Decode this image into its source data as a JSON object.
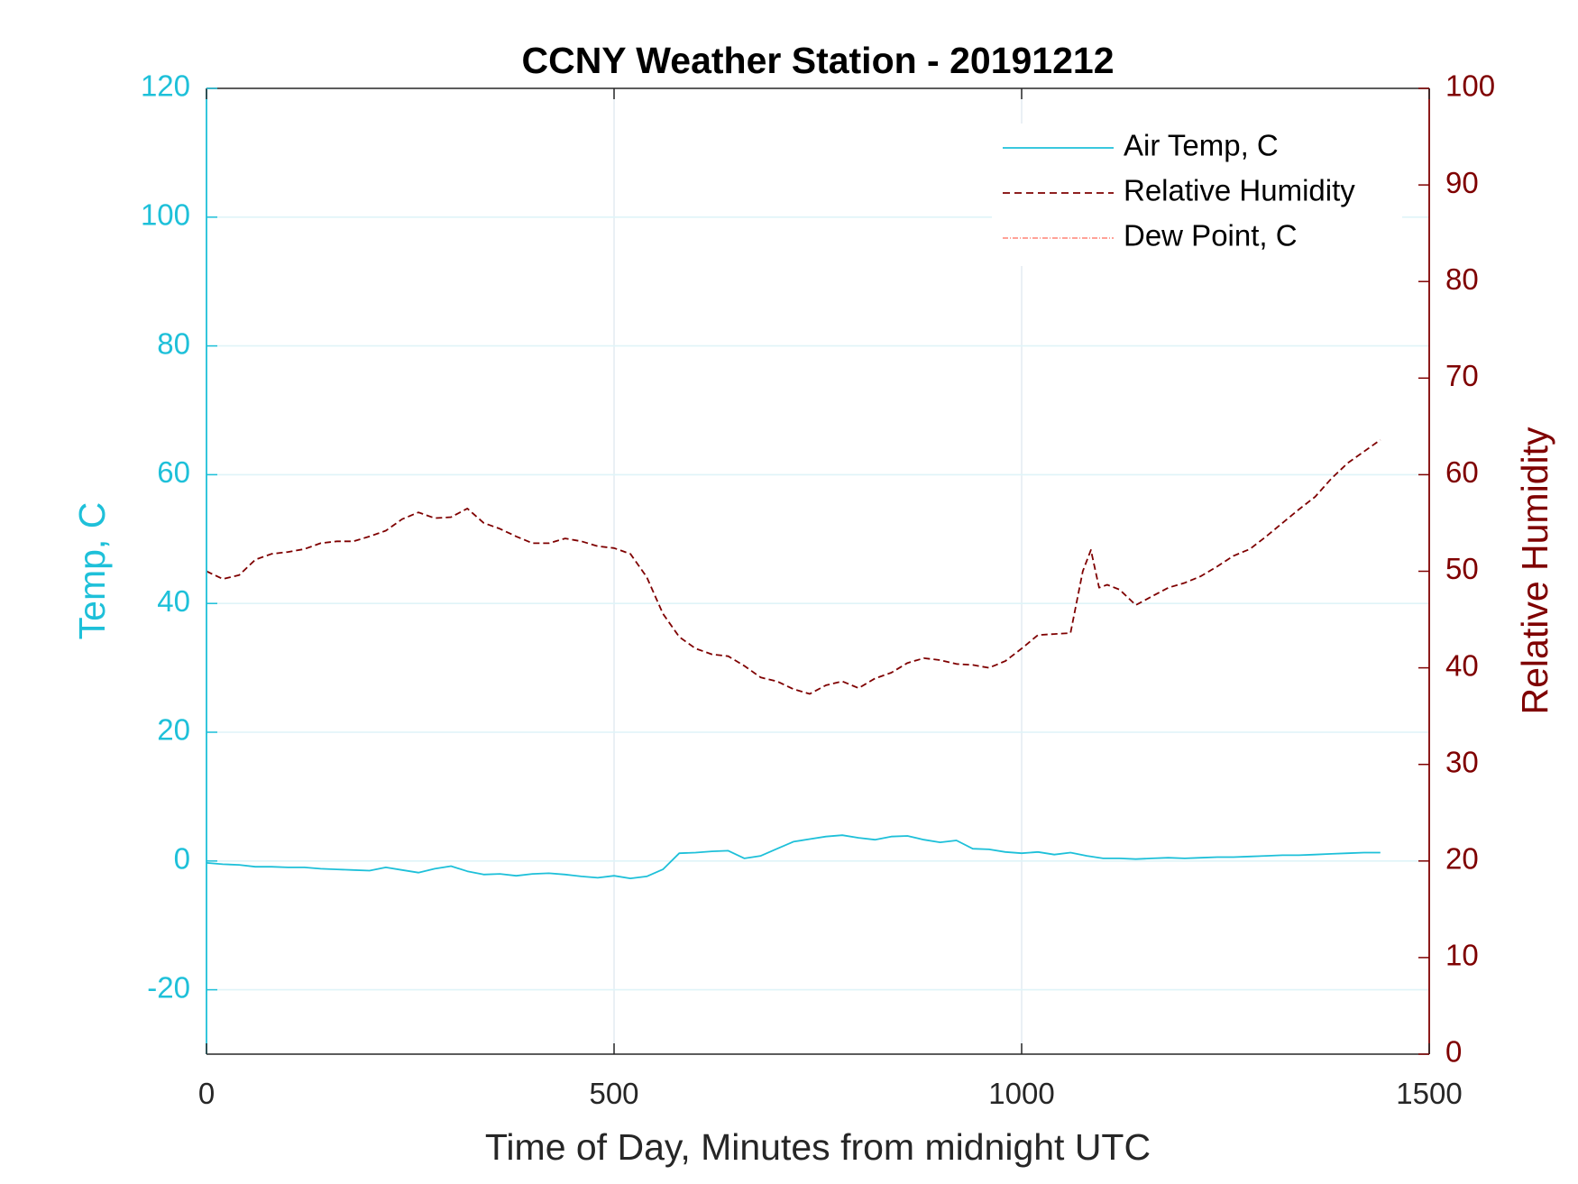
{
  "colors": {
    "temp": "#1ec0d9",
    "humidity": "#7f0000",
    "dewpoint": "#ff6a5a",
    "grid": "#dde6ee",
    "axis_x": "#262626"
  },
  "chart_data": {
    "type": "line",
    "title": "CCNY Weather Station - 20191212",
    "xlabel": "Time of Day, Minutes from midnight UTC",
    "ylabel_left": "Temp, C",
    "ylabel_right": "Relative Humidity",
    "xlim": [
      0,
      1500
    ],
    "ylim_left": [
      -30,
      120
    ],
    "ylim_right": [
      0,
      100
    ],
    "x_ticks": [
      "0",
      "500",
      "1000",
      "1500"
    ],
    "y_left_ticks": [
      "-20",
      "0",
      "20",
      "40",
      "60",
      "80",
      "100",
      "120"
    ],
    "y_right_ticks": [
      "0",
      "10",
      "20",
      "30",
      "40",
      "50",
      "60",
      "70",
      "80",
      "90",
      "100"
    ],
    "grid": true,
    "legend_position": "top-right",
    "legend": [
      "Air Temp, C",
      "Relative Humidity",
      "Dew Point, C"
    ],
    "series": [
      {
        "name": "Air Temp, C",
        "axis": "left",
        "style": "solid",
        "x": [
          0,
          20,
          40,
          60,
          80,
          100,
          120,
          140,
          160,
          180,
          200,
          220,
          240,
          260,
          280,
          300,
          320,
          340,
          360,
          380,
          400,
          420,
          440,
          460,
          480,
          500,
          520,
          540,
          560,
          580,
          600,
          620,
          640,
          660,
          680,
          700,
          720,
          740,
          760,
          780,
          800,
          820,
          840,
          860,
          880,
          900,
          920,
          940,
          960,
          980,
          1000,
          1020,
          1040,
          1060,
          1080,
          1100,
          1120,
          1140,
          1160,
          1180,
          1200,
          1220,
          1240,
          1260,
          1280,
          1300,
          1320,
          1340,
          1360,
          1380,
          1400,
          1420,
          1440
        ],
        "y": [
          -0.3,
          -0.5,
          -0.6,
          -0.9,
          -0.9,
          -1.0,
          -1.0,
          -1.2,
          -1.3,
          -1.4,
          -1.5,
          -1.0,
          -1.4,
          -1.8,
          -1.2,
          -0.8,
          -1.6,
          -2.1,
          -2.0,
          -2.3,
          -2.0,
          -1.9,
          -2.1,
          -2.4,
          -2.6,
          -2.3,
          -2.7,
          -2.4,
          -1.3,
          1.2,
          1.3,
          1.5,
          1.6,
          0.4,
          0.8,
          1.9,
          3.0,
          3.4,
          3.8,
          4.0,
          3.6,
          3.3,
          3.8,
          3.9,
          3.3,
          2.9,
          3.2,
          1.9,
          1.8,
          1.4,
          1.2,
          1.4,
          1.0,
          1.3,
          0.8,
          0.4,
          0.4,
          0.3,
          0.4,
          0.5,
          0.4,
          0.5,
          0.6,
          0.6,
          0.7,
          0.8,
          0.9,
          0.9,
          1.0,
          1.1,
          1.2,
          1.3,
          1.3
        ]
      },
      {
        "name": "Relative Humidity",
        "axis": "right",
        "style": "dashed",
        "x": [
          0,
          20,
          40,
          60,
          80,
          100,
          120,
          140,
          160,
          180,
          200,
          220,
          240,
          260,
          280,
          300,
          320,
          340,
          360,
          380,
          400,
          420,
          440,
          460,
          480,
          500,
          520,
          540,
          560,
          580,
          600,
          620,
          640,
          660,
          680,
          700,
          720,
          740,
          760,
          780,
          800,
          820,
          840,
          860,
          880,
          900,
          920,
          940,
          960,
          980,
          1000,
          1020,
          1040,
          1060,
          1075,
          1085,
          1095,
          1105,
          1120,
          1140,
          1160,
          1180,
          1200,
          1220,
          1240,
          1260,
          1280,
          1300,
          1320,
          1340,
          1360,
          1380,
          1400,
          1420,
          1440
        ],
        "y": [
          50.0,
          49.2,
          49.6,
          51.2,
          51.8,
          52.0,
          52.3,
          52.9,
          53.1,
          53.1,
          53.6,
          54.2,
          55.4,
          56.1,
          55.5,
          55.6,
          56.5,
          55.0,
          54.4,
          53.6,
          52.9,
          52.9,
          53.4,
          53.1,
          52.6,
          52.4,
          51.8,
          49.4,
          45.6,
          43.2,
          42.0,
          41.4,
          41.2,
          40.2,
          39.0,
          38.6,
          37.8,
          37.3,
          38.2,
          38.6,
          37.9,
          38.9,
          39.5,
          40.5,
          41.0,
          40.8,
          40.4,
          40.3,
          40.0,
          40.7,
          42.0,
          43.4,
          43.5,
          43.6,
          50.0,
          52.2,
          48.3,
          48.6,
          48.1,
          46.5,
          47.4,
          48.3,
          48.8,
          49.5,
          50.5,
          51.6,
          52.3,
          53.6,
          55.0,
          56.4,
          57.7,
          59.6,
          61.2,
          62.4,
          63.6
        ]
      },
      {
        "name": "Dew Point, C",
        "axis": "left",
        "style": "dashdot",
        "x": [],
        "y": []
      }
    ]
  }
}
